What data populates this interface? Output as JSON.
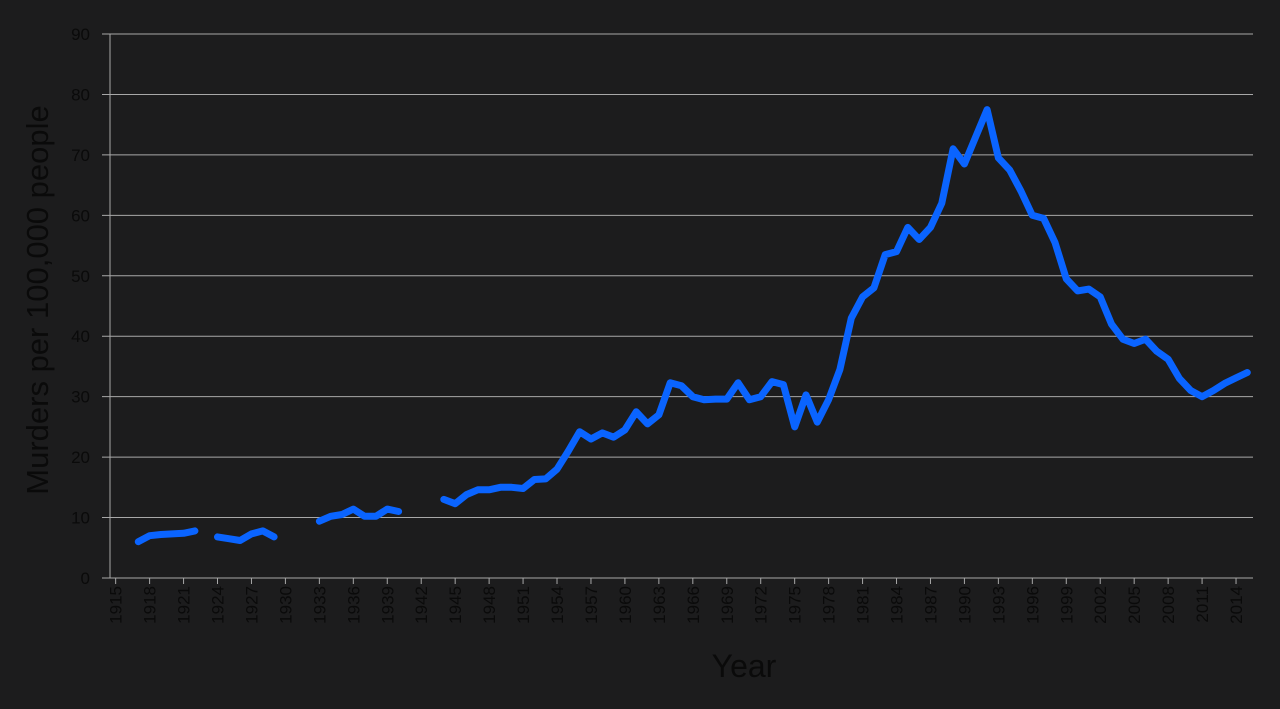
{
  "chart_data": {
    "type": "line",
    "x_label": "Year",
    "y_label": "Murders per 100,000 people",
    "x": [
      1917,
      1918,
      1919,
      1920,
      1921,
      1922,
      1923,
      1924,
      1925,
      1926,
      1927,
      1928,
      1929,
      1930,
      1931,
      1932,
      1933,
      1934,
      1935,
      1936,
      1937,
      1938,
      1939,
      1940,
      1941,
      1942,
      1943,
      1944,
      1945,
      1946,
      1947,
      1948,
      1949,
      1950,
      1951,
      1952,
      1953,
      1954,
      1955,
      1956,
      1957,
      1958,
      1959,
      1960,
      1961,
      1962,
      1963,
      1964,
      1965,
      1966,
      1967,
      1968,
      1969,
      1970,
      1971,
      1972,
      1973,
      1974,
      1975,
      1976,
      1977,
      1978,
      1979,
      1980,
      1981,
      1982,
      1983,
      1984,
      1985,
      1986,
      1987,
      1988,
      1989,
      1990,
      1991,
      1992,
      1993,
      1994,
      1995,
      1996,
      1997,
      1998,
      1999,
      2000,
      2001,
      2002,
      2003,
      2004,
      2005,
      2006,
      2007,
      2008,
      2009,
      2010,
      2011,
      2012,
      2013,
      2014,
      2015
    ],
    "values": [
      6,
      7,
      7.2,
      7.3,
      7.4,
      7.8,
      null,
      6.8,
      6.5,
      6.2,
      7.3,
      7.8,
      6.8,
      null,
      null,
      null,
      9.4,
      10.2,
      10.5,
      11.4,
      10.2,
      10.2,
      11.4,
      11,
      null,
      null,
      null,
      13,
      12.3,
      13.8,
      14.6,
      14.6,
      15,
      15,
      14.8,
      16.3,
      16.4,
      18,
      21,
      24.2,
      23,
      24,
      23.3,
      24.5,
      27.5,
      25.5,
      27,
      32.3,
      31.8,
      30,
      29.5,
      29.6,
      29.6,
      32.3,
      29.5,
      30,
      32.5,
      32,
      25,
      30.3,
      25.8,
      29.5,
      34.5,
      43,
      46.5,
      48,
      53.5,
      54,
      58,
      56,
      58,
      62,
      71,
      68.5,
      73,
      77.5,
      69.5,
      67.5,
      64,
      60,
      59.5,
      55.5,
      49.5,
      47.5,
      47.8,
      46.5,
      42,
      39.5,
      38.8,
      39.5,
      37.5,
      36.2,
      33,
      31,
      30,
      31,
      32.2,
      33.1,
      34
    ],
    "color": "#0a64ff",
    "xlim": [
      1914.5,
      2015.5
    ],
    "xticks": [
      1915,
      1918,
      1921,
      1924,
      1927,
      1930,
      1933,
      1936,
      1939,
      1942,
      1945,
      1948,
      1951,
      1954,
      1957,
      1960,
      1963,
      1966,
      1969,
      1972,
      1975,
      1978,
      1981,
      1984,
      1987,
      1990,
      1993,
      1996,
      1999,
      2002,
      2005,
      2008,
      2011,
      2014
    ],
    "ylim": [
      0,
      90
    ],
    "yticks": [
      0,
      10,
      20,
      30,
      40,
      50,
      60,
      70,
      80,
      90
    ],
    "grid": true
  }
}
